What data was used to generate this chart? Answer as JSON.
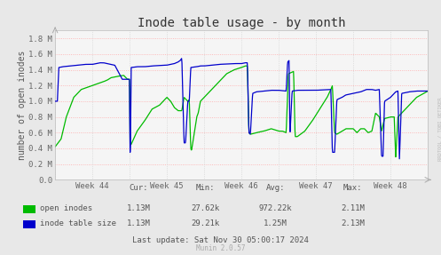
{
  "title": "Inode table usage - by month",
  "ylabel": "number of open inodes",
  "background_color": "#e8e8e8",
  "plot_bg_color": "#f5f5f5",
  "grid_color_h": "#ffaaaa",
  "grid_color_v": "#cccccc",
  "ylim": [
    0.0,
    1900000.0
  ],
  "yticks": [
    0.0,
    200000.0,
    400000.0,
    600000.0,
    800000.0,
    1000000.0,
    1200000.0,
    1400000.0,
    1600000.0,
    1800000.0
  ],
  "ytick_labels": [
    "0.0",
    "0.2 M",
    "0.4 M",
    "0.6 M",
    "0.8 M",
    "1.0 M",
    "1.2 M",
    "1.4 M",
    "1.6 M",
    "1.8 M"
  ],
  "week_labels": [
    "Week 44",
    "Week 45",
    "Week 46",
    "Week 47",
    "Week 48"
  ],
  "line_green_color": "#00bb00",
  "line_blue_color": "#0000cc",
  "legend_labels": [
    "open inodes",
    "inode table size"
  ],
  "cur_label": "Cur:",
  "min_label": "Min:",
  "avg_label": "Avg:",
  "max_label": "Max:",
  "open_inodes_stats": {
    "cur": "1.13M",
    "min": "27.62k",
    "avg": "972.22k",
    "max": "2.11M"
  },
  "inode_table_stats": {
    "cur": "1.13M",
    "min": "29.21k",
    "avg": "1.25M",
    "max": "2.13M"
  },
  "last_update": "Last update: Sat Nov 30 05:00:17 2024",
  "munin_label": "Munin 2.0.57",
  "rrdtool_label": "RRDTOOL / TOBI OETIKER",
  "title_fontsize": 10,
  "axis_fontsize": 7,
  "tick_fontsize": 6.5,
  "stats_fontsize": 6.5
}
